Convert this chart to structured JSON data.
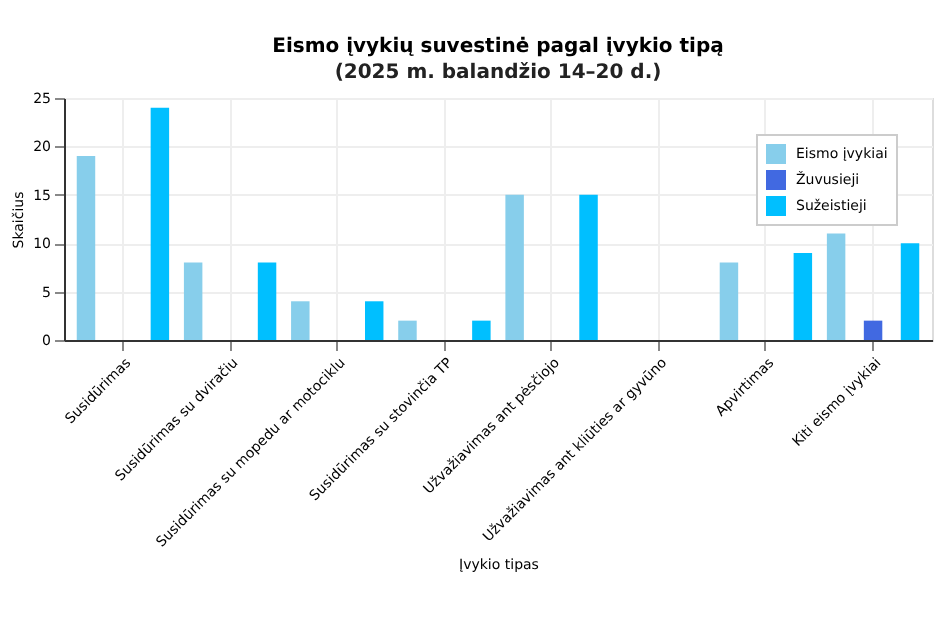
{
  "chart_data": {
    "type": "bar",
    "title": "Eismo įvykių suvestinė pagal įvykio tipą",
    "subtitle": "(2025 m. balandžio 14–20 d.)",
    "xlabel": "Įvykio tipas",
    "ylabel": "Skaičius",
    "categories": [
      "Susidūrimas",
      "Susidūrimas su dviračiu",
      "Susidūrimas su mopedu ar motociklu",
      "Susidūrimas su stovinčia TP",
      "Užvažiavimas ant pėsčiojo",
      "Užvažiavimas ant kliūties ar gyvūno",
      "Apvirtimas",
      "Kiti eismo įvykiai"
    ],
    "series": [
      {
        "name": "Eismo įvykiai",
        "color": "#87ceeb",
        "values": [
          19,
          8,
          4,
          2,
          15,
          0,
          8,
          11
        ]
      },
      {
        "name": "Žuvusieji",
        "color": "#4169e1",
        "values": [
          0,
          0,
          0,
          0,
          0,
          0,
          0,
          2
        ]
      },
      {
        "name": "Sužeistieji",
        "color": "#00bfff",
        "values": [
          24,
          8,
          4,
          2,
          15,
          0,
          9,
          10
        ]
      }
    ],
    "ylim": [
      0,
      25
    ],
    "yticks": [
      0,
      5,
      10,
      15,
      20,
      25
    ],
    "grid": true,
    "legend": "top right"
  }
}
